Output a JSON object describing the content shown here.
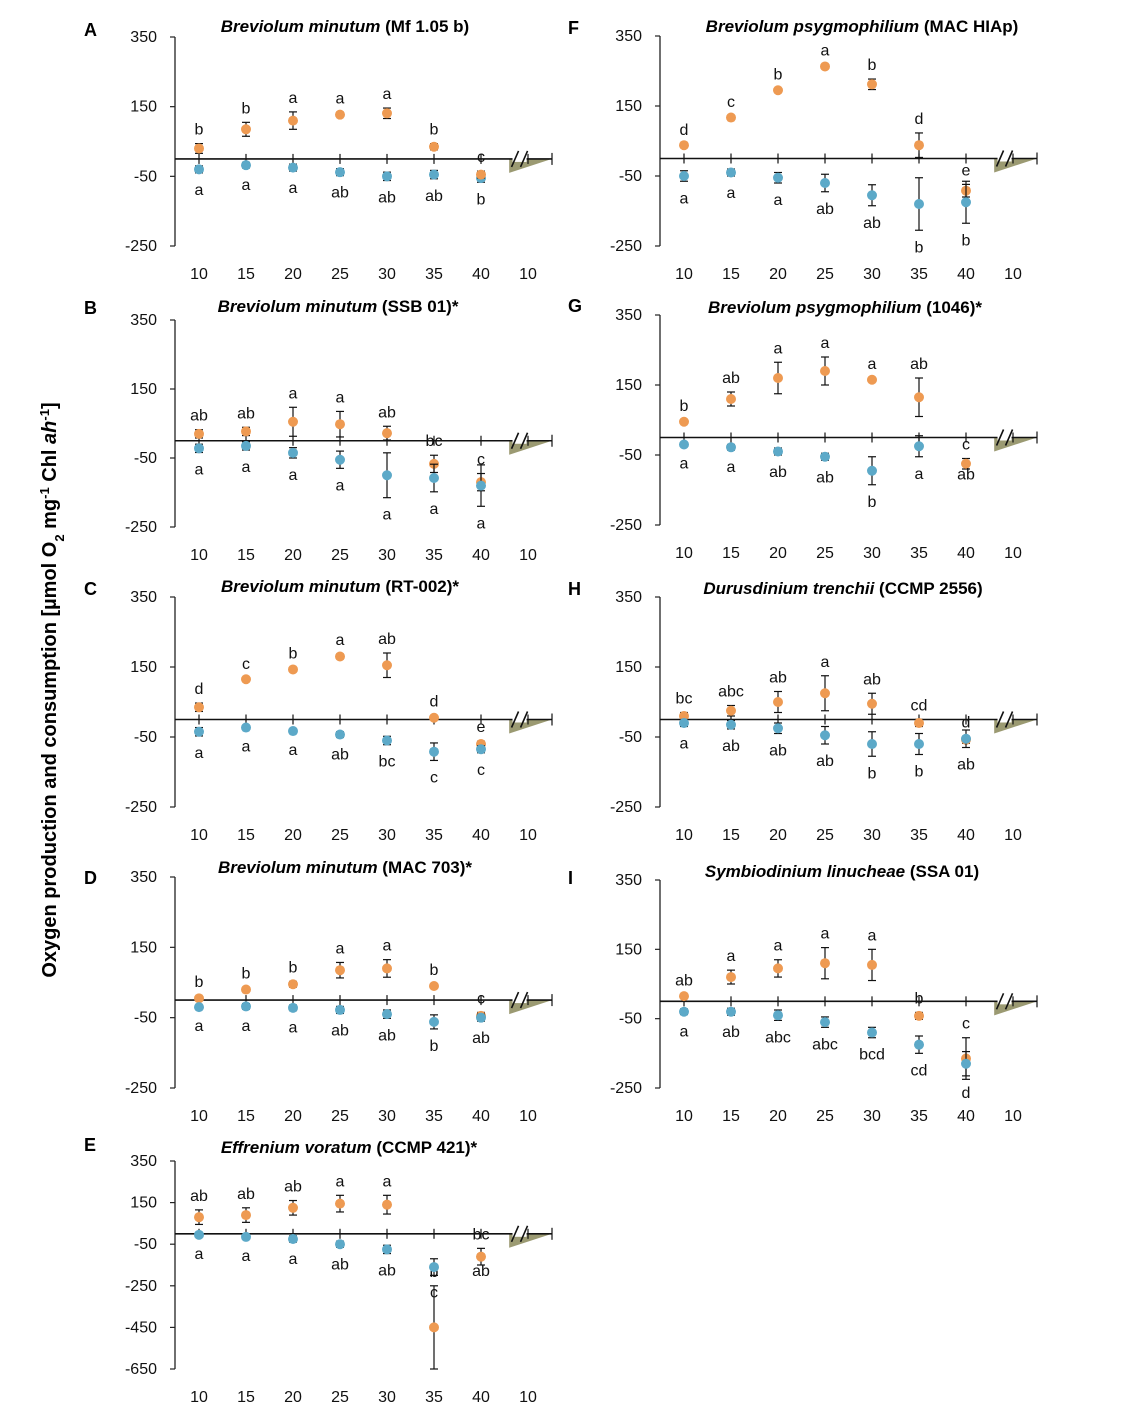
{
  "y_axis_label": {
    "main": "Oxygen production and consumption [µmol O",
    "sub2": "2",
    "mid": " mg",
    "sup1": "-1",
    "chl": " Chl ",
    "ah": "ah",
    "sup2": "-1",
    "end": "]"
  },
  "colors": {
    "production": "#EE9A52",
    "consumption": "#5CA9C8",
    "shade": "#9B9A72"
  },
  "chart_data": [
    {
      "panel": "A",
      "type": "scatter",
      "title_species": "Breviolum minutum",
      "title_strain": " (Mf 1.05 b)",
      "x_ticks": [
        "10",
        "15",
        "20",
        "25",
        "30",
        "35",
        "40",
        "10"
      ],
      "y_ticks": [
        "350",
        "150",
        "-50",
        "-250"
      ],
      "ylim": [
        -250,
        350
      ],
      "series": [
        {
          "key": "production",
          "values": [
            30,
            85,
            110,
            127,
            131,
            35,
            null
          ],
          "err": [
            14,
            20,
            25,
            6,
            15,
            9,
            null
          ],
          "labels": [
            "b",
            "b",
            "a",
            "a",
            "a",
            "b",
            ""
          ]
        },
        {
          "key": "consumption",
          "values": [
            -30,
            -18,
            -25,
            -38,
            -50,
            -45,
            -55
          ],
          "err": [
            10,
            8,
            10,
            10,
            12,
            12,
            12
          ],
          "labels": [
            "a",
            "a",
            "a",
            "ab",
            "ab",
            "ab",
            "b"
          ]
        },
        {
          "key": "production_end",
          "values": [
            null,
            null,
            null,
            null,
            null,
            null,
            -45
          ],
          "err": [
            null,
            null,
            null,
            null,
            null,
            null,
            10
          ],
          "labels": [
            "",
            "",
            "",
            "",
            "",
            "",
            "c"
          ]
        }
      ]
    },
    {
      "panel": "F",
      "type": "scatter",
      "title_species": "Breviolum psygmophilium",
      "title_strain": " (MAC HIAp)",
      "x_ticks": [
        "10",
        "15",
        "20",
        "25",
        "30",
        "35",
        "40",
        "10"
      ],
      "y_ticks": [
        "350",
        "150",
        "-50",
        "-250"
      ],
      "ylim": [
        -250,
        350
      ],
      "series": [
        {
          "key": "production",
          "values": [
            38,
            117,
            195,
            263,
            212,
            38,
            -92
          ],
          "err": [
            4,
            4,
            5,
            5,
            15,
            35,
            18
          ],
          "labels": [
            "d",
            "c",
            "b",
            "a",
            "b",
            "d",
            "e"
          ]
        },
        {
          "key": "consumption",
          "values": [
            -50,
            -40,
            -55,
            -70,
            -105,
            -130,
            -125
          ],
          "err": [
            15,
            10,
            15,
            25,
            30,
            75,
            60
          ],
          "labels": [
            "a",
            "a",
            "a",
            "ab",
            "ab",
            "b",
            "b"
          ]
        }
      ]
    },
    {
      "panel": "B",
      "type": "scatter",
      "title_species": "Breviolum minutum",
      "title_strain": " (SSB 01)*",
      "x_ticks": [
        "10",
        "15",
        "20",
        "25",
        "30",
        "35",
        "40",
        "10"
      ],
      "y_ticks": [
        "350",
        "150",
        "-50",
        "-250"
      ],
      "ylim": [
        -250,
        350
      ],
      "series": [
        {
          "key": "production",
          "values": [
            20,
            27,
            55,
            48,
            22,
            -67,
            -120
          ],
          "err": [
            12,
            12,
            42,
            37,
            20,
            25,
            25
          ],
          "labels": [
            "ab",
            "ab",
            "a",
            "a",
            "ab",
            "bc",
            "c"
          ]
        },
        {
          "key": "consumption",
          "values": [
            -22,
            -15,
            -35,
            -55,
            -100,
            -108,
            -130
          ],
          "err": [
            12,
            12,
            15,
            25,
            65,
            40,
            60
          ],
          "labels": [
            "a",
            "a",
            "a",
            "a",
            "a",
            "a",
            "a"
          ]
        }
      ]
    },
    {
      "panel": "G",
      "type": "scatter",
      "title_species": "Breviolum psygmophilium",
      "title_strain": " (1046)*",
      "x_ticks": [
        "10",
        "15",
        "20",
        "25",
        "30",
        "35",
        "40",
        "10"
      ],
      "y_ticks": [
        "350",
        "150",
        "-50",
        "-250"
      ],
      "ylim": [
        -250,
        350
      ],
      "series": [
        {
          "key": "production",
          "values": [
            45,
            110,
            170,
            190,
            165,
            115,
            -75
          ],
          "err": [
            5,
            20,
            45,
            40,
            5,
            55,
            15
          ],
          "labels": [
            "b",
            "ab",
            "a",
            "a",
            "a",
            "ab",
            "c"
          ]
        },
        {
          "key": "consumption",
          "values": [
            -20,
            -28,
            -40,
            -55,
            -95,
            -25,
            null
          ],
          "err": [
            5,
            8,
            10,
            10,
            40,
            30,
            null
          ],
          "labels": [
            "a",
            "a",
            "ab",
            "ab",
            "b",
            "a",
            "ab"
          ]
        }
      ]
    },
    {
      "panel": "C",
      "type": "scatter",
      "title_species": "Breviolum minutum",
      "title_strain": " (RT-002)*",
      "x_ticks": [
        "10",
        "15",
        "20",
        "25",
        "30",
        "35",
        "40",
        "10"
      ],
      "y_ticks": [
        "350",
        "150",
        "-50",
        "-250"
      ],
      "ylim": [
        -250,
        350
      ],
      "series": [
        {
          "key": "production",
          "values": [
            35,
            115,
            143,
            180,
            155,
            5,
            -70
          ],
          "err": [
            12,
            4,
            5,
            7,
            35,
            6,
            8
          ],
          "labels": [
            "d",
            "c",
            "b",
            "a",
            "ab",
            "d",
            "e"
          ]
        },
        {
          "key": "consumption",
          "values": [
            -35,
            -23,
            -33,
            -43,
            -60,
            -92,
            -85
          ],
          "err": [
            12,
            5,
            6,
            8,
            12,
            25,
            10
          ],
          "labels": [
            "a",
            "a",
            "a",
            "ab",
            "bc",
            "c",
            "c"
          ]
        }
      ]
    },
    {
      "panel": "H",
      "type": "scatter",
      "title_species": "Durusdinium trenchii",
      "title_strain": " (CCMP 2556)",
      "x_ticks": [
        "10",
        "15",
        "20",
        "25",
        "30",
        "35",
        "40",
        "10"
      ],
      "y_ticks": [
        "350",
        "150",
        "-50",
        "-250"
      ],
      "ylim": [
        -250,
        350
      ],
      "series": [
        {
          "key": "production",
          "values": [
            10,
            25,
            50,
            75,
            45,
            -10,
            -58
          ],
          "err": [
            10,
            15,
            30,
            50,
            30,
            10,
            10
          ],
          "labels": [
            "bc",
            "abc",
            "ab",
            "a",
            "ab",
            "cd",
            "d"
          ]
        },
        {
          "key": "consumption",
          "values": [
            -10,
            -15,
            -25,
            -45,
            -70,
            -70,
            -55
          ],
          "err": [
            10,
            12,
            15,
            25,
            35,
            30,
            25
          ],
          "labels": [
            "a",
            "ab",
            "ab",
            "ab",
            "b",
            "b",
            "ab"
          ]
        }
      ]
    },
    {
      "panel": "D",
      "type": "scatter",
      "title_species": "Breviolum minutum",
      "title_strain": " (MAC 703)*",
      "x_ticks": [
        "10",
        "15",
        "20",
        "25",
        "30",
        "35",
        "40",
        "10"
      ],
      "y_ticks": [
        "350",
        "150",
        "-50",
        "-250"
      ],
      "ylim": [
        -250,
        350
      ],
      "series": [
        {
          "key": "production",
          "values": [
            5,
            30,
            45,
            85,
            90,
            40,
            -45
          ],
          "err": [
            6,
            6,
            8,
            22,
            25,
            6,
            10
          ],
          "labels": [
            "b",
            "b",
            "b",
            "a",
            "a",
            "b",
            "c"
          ]
        },
        {
          "key": "consumption",
          "values": [
            -20,
            -18,
            -22,
            -28,
            -40,
            -62,
            -50
          ],
          "err": [
            6,
            8,
            8,
            10,
            12,
            20,
            10
          ],
          "labels": [
            "a",
            "a",
            "a",
            "ab",
            "ab",
            "b",
            "ab"
          ]
        }
      ]
    },
    {
      "panel": "I",
      "type": "scatter",
      "title_species": "Symbiodinium linucheae",
      "title_strain": " (SSA 01)",
      "x_ticks": [
        "10",
        "15",
        "20",
        "25",
        "30",
        "35",
        "40",
        "10"
      ],
      "y_ticks": [
        "350",
        "150",
        "-50",
        "-250"
      ],
      "ylim": [
        -250,
        350
      ],
      "series": [
        {
          "key": "production",
          "values": [
            15,
            70,
            95,
            110,
            105,
            -42,
            -165
          ],
          "err": [
            5,
            20,
            25,
            45,
            45,
            10,
            60
          ],
          "labels": [
            "ab",
            "a",
            "a",
            "a",
            "a",
            "b",
            "c"
          ]
        },
        {
          "key": "consumption",
          "values": [
            -30,
            -30,
            -40,
            -60,
            -90,
            -125,
            -180
          ],
          "err": [
            8,
            10,
            15,
            15,
            15,
            25,
            35
          ],
          "labels": [
            "a",
            "ab",
            "abc",
            "abc",
            "bcd",
            "cd",
            "d"
          ]
        }
      ]
    },
    {
      "panel": "E",
      "type": "scatter",
      "title_species": "Effrenium voratum",
      "title_strain": " (CCMP 421)*",
      "x_ticks": [
        "10",
        "15",
        "20",
        "25",
        "30",
        "35",
        "40",
        "10"
      ],
      "y_ticks": [
        "350",
        "150",
        "-50",
        "-250",
        "-450",
        "-650"
      ],
      "ylim": [
        -650,
        350
      ],
      "series": [
        {
          "key": "production",
          "values": [
            80,
            90,
            125,
            145,
            140,
            -450,
            -110
          ],
          "err": [
            35,
            35,
            35,
            40,
            45,
            200,
            40
          ],
          "labels": [
            "ab",
            "ab",
            "ab",
            "a",
            "a",
            "b",
            "bc"
          ]
        },
        {
          "key": "consumption",
          "values": [
            -5,
            -15,
            -25,
            -50,
            -75,
            -160,
            null
          ],
          "err": [
            10,
            10,
            15,
            15,
            20,
            40,
            null
          ],
          "labels": [
            "a",
            "a",
            "a",
            "ab",
            "ab",
            "c",
            "ab"
          ]
        }
      ]
    }
  ]
}
